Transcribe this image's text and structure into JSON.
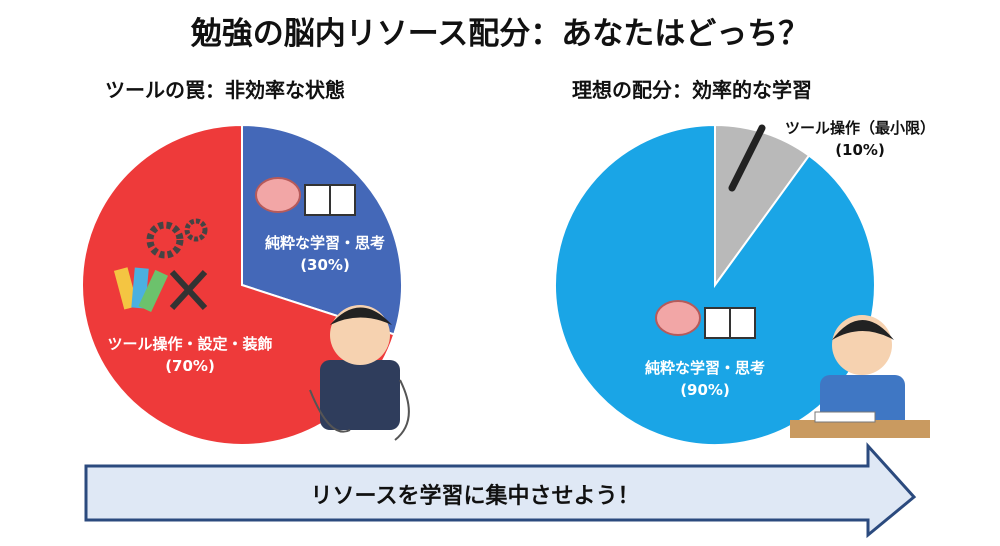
{
  "title": "勉強の脳内リソース配分：あなたはどっち？",
  "chart_data": [
    {
      "type": "pie",
      "title": "ツールの罠：非効率な状態",
      "slices": [
        {
          "label": "純粋な学習・思考",
          "value": 30,
          "value_label": "(30%)",
          "color": "#4468b8",
          "icons": [
            "brain-icon",
            "book-icon"
          ]
        },
        {
          "label": "ツール操作・設定・装飾",
          "value": 70,
          "value_label": "(70%)",
          "color": "#ee3a3a",
          "icons": [
            "gear-icon",
            "color-palette-icon",
            "wrench-screwdriver-icon"
          ]
        }
      ],
      "illustration": "confused-student-tangled-in-cables"
    },
    {
      "type": "pie",
      "title": "理想の配分：効率的な学習",
      "slices": [
        {
          "label": "ツール操作（最小限）",
          "value": 10,
          "value_label": "(10%)",
          "color": "#b9b9b9",
          "icons": [
            "pen-icon"
          ]
        },
        {
          "label": "純粋な学習・思考",
          "value": 90,
          "value_label": "(90%)",
          "color": "#1aa5e6",
          "icons": [
            "brain-icon",
            "book-icon"
          ]
        }
      ],
      "illustration": "focused-student-writing"
    }
  ],
  "banner": {
    "text": "リソースを学習に集中させよう！",
    "fill": "#dfe8f5",
    "border": "#2b4a7e"
  }
}
